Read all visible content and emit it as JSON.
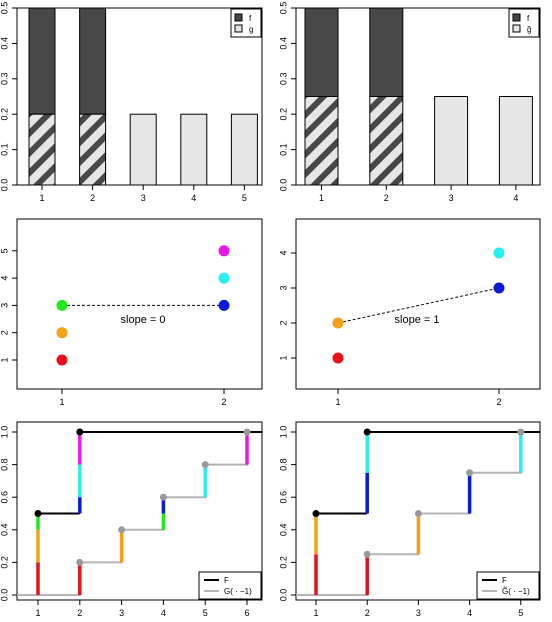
{
  "colors": {
    "f_fill": "#484848",
    "g_fill": "#e6e6e6",
    "hatch": "#484848",
    "red": "#e8101a",
    "orange": "#f5a015",
    "green": "#22e81a",
    "magenta": "#e81ae8",
    "cyan": "#27eef0",
    "blue": "#0a1ad8",
    "F_line": "#000000",
    "G_line": "#b5b5b5",
    "G_point": "#9a9a9a"
  },
  "chart_data": [
    {
      "id": "bar-left",
      "type": "bar",
      "categories": [
        "1",
        "2",
        "3",
        "4",
        "5"
      ],
      "series": [
        {
          "name": "f",
          "values": [
            0.5,
            0.5,
            0,
            0,
            0
          ]
        },
        {
          "name": "g",
          "values": [
            0.2,
            0.2,
            0.2,
            0.2,
            0.2
          ]
        }
      ],
      "ylim": [
        0,
        0.5
      ],
      "yticks": [
        "0.0",
        "0.1",
        "0.2",
        "0.3",
        "0.4",
        "0.5"
      ],
      "legend": {
        "position": "top-right",
        "labels": [
          "f",
          "g"
        ]
      }
    },
    {
      "id": "bar-right",
      "type": "bar",
      "categories": [
        "1",
        "2",
        "3",
        "4"
      ],
      "series": [
        {
          "name": "f",
          "values": [
            0.5,
            0.5,
            0,
            0
          ]
        },
        {
          "name": "g̃",
          "values": [
            0.25,
            0.25,
            0.25,
            0.25
          ]
        }
      ],
      "ylim": [
        0,
        0.5
      ],
      "yticks": [
        "0.0",
        "0.1",
        "0.2",
        "0.3",
        "0.4",
        "0.5"
      ],
      "legend": {
        "position": "top-right",
        "labels": [
          "f",
          "g̃"
        ]
      }
    },
    {
      "id": "scatter-left",
      "type": "scatter",
      "xticks": [
        "1",
        "2"
      ],
      "yticks": [
        "1",
        "2",
        "3",
        "4",
        "5"
      ],
      "points": [
        {
          "x": 1,
          "y": 1,
          "color": "red"
        },
        {
          "x": 1,
          "y": 2,
          "color": "orange"
        },
        {
          "x": 1,
          "y": 3,
          "color": "green"
        },
        {
          "x": 2,
          "y": 3,
          "color": "blue"
        },
        {
          "x": 2,
          "y": 4,
          "color": "cyan"
        },
        {
          "x": 2,
          "y": 5,
          "color": "magenta"
        }
      ],
      "segment": {
        "from": [
          1,
          3
        ],
        "to": [
          2,
          3
        ]
      },
      "annotation": "slope = 0"
    },
    {
      "id": "scatter-right",
      "type": "scatter",
      "xticks": [
        "1",
        "2"
      ],
      "yticks": [
        "1",
        "2",
        "3",
        "4"
      ],
      "points": [
        {
          "x": 1,
          "y": 1,
          "color": "red"
        },
        {
          "x": 1,
          "y": 2,
          "color": "orange"
        },
        {
          "x": 2,
          "y": 3,
          "color": "blue"
        },
        {
          "x": 2,
          "y": 4,
          "color": "cyan"
        }
      ],
      "segment": {
        "from": [
          1,
          2
        ],
        "to": [
          2,
          3
        ]
      },
      "annotation": "slope = 1"
    },
    {
      "id": "cdf-left",
      "type": "line",
      "xticks": [
        "1",
        "2",
        "3",
        "4",
        "5",
        "6"
      ],
      "yticks": [
        "0.0",
        "0.2",
        "0.4",
        "0.6",
        "0.8",
        "1.0"
      ],
      "F": {
        "jumps": [
          {
            "x": 1,
            "from": 0,
            "to": 0.5
          },
          {
            "x": 2,
            "from": 0.5,
            "to": 1.0
          }
        ]
      },
      "G": {
        "jumps": [
          {
            "x": 2,
            "from": 0,
            "to": 0.2
          },
          {
            "x": 3,
            "from": 0.2,
            "to": 0.4
          },
          {
            "x": 4,
            "from": 0.4,
            "to": 0.6
          },
          {
            "x": 5,
            "from": 0.6,
            "to": 0.8
          },
          {
            "x": 6,
            "from": 0.8,
            "to": 1.0
          }
        ]
      },
      "colored_segments": [
        {
          "x": 1,
          "from": 0,
          "to": 0.2,
          "color": "red"
        },
        {
          "x": 1,
          "from": 0.2,
          "to": 0.4,
          "color": "orange"
        },
        {
          "x": 1,
          "from": 0.4,
          "to": 0.5,
          "color": "green"
        },
        {
          "x": 2,
          "from": 0,
          "to": 0.2,
          "color": "red"
        },
        {
          "x": 2,
          "from": 0.5,
          "to": 0.6,
          "color": "blue"
        },
        {
          "x": 2,
          "from": 0.6,
          "to": 0.8,
          "color": "cyan"
        },
        {
          "x": 2,
          "from": 0.8,
          "to": 1.0,
          "color": "magenta"
        },
        {
          "x": 3,
          "from": 0.2,
          "to": 0.4,
          "color": "orange"
        },
        {
          "x": 4,
          "from": 0.4,
          "to": 0.5,
          "color": "green"
        },
        {
          "x": 4,
          "from": 0.5,
          "to": 0.6,
          "color": "blue"
        },
        {
          "x": 5,
          "from": 0.6,
          "to": 0.8,
          "color": "cyan"
        },
        {
          "x": 6,
          "from": 0.8,
          "to": 1.0,
          "color": "magenta"
        }
      ],
      "legend": {
        "position": "bottom-right",
        "labels": [
          "F",
          "G( · −1)"
        ]
      }
    },
    {
      "id": "cdf-right",
      "type": "line",
      "xticks": [
        "1",
        "2",
        "3",
        "4",
        "5"
      ],
      "yticks": [
        "0.0",
        "0.2",
        "0.4",
        "0.6",
        "0.8",
        "1.0"
      ],
      "F": {
        "jumps": [
          {
            "x": 1,
            "from": 0,
            "to": 0.5
          },
          {
            "x": 2,
            "from": 0.5,
            "to": 1.0
          }
        ]
      },
      "G": {
        "jumps": [
          {
            "x": 2,
            "from": 0,
            "to": 0.25
          },
          {
            "x": 3,
            "from": 0.25,
            "to": 0.5
          },
          {
            "x": 4,
            "from": 0.5,
            "to": 0.75
          },
          {
            "x": 5,
            "from": 0.75,
            "to": 1.0
          }
        ]
      },
      "colored_segments": [
        {
          "x": 1,
          "from": 0,
          "to": 0.25,
          "color": "red"
        },
        {
          "x": 1,
          "from": 0.25,
          "to": 0.5,
          "color": "orange"
        },
        {
          "x": 2,
          "from": 0,
          "to": 0.25,
          "color": "red"
        },
        {
          "x": 2,
          "from": 0.5,
          "to": 0.75,
          "color": "blue"
        },
        {
          "x": 2,
          "from": 0.75,
          "to": 1.0,
          "color": "cyan"
        },
        {
          "x": 3,
          "from": 0.25,
          "to": 0.5,
          "color": "orange"
        },
        {
          "x": 4,
          "from": 0.5,
          "to": 0.75,
          "color": "blue"
        },
        {
          "x": 5,
          "from": 0.75,
          "to": 1.0,
          "color": "cyan"
        }
      ],
      "legend": {
        "position": "bottom-right",
        "labels": [
          "F",
          "G̃( · −1)"
        ]
      }
    }
  ]
}
